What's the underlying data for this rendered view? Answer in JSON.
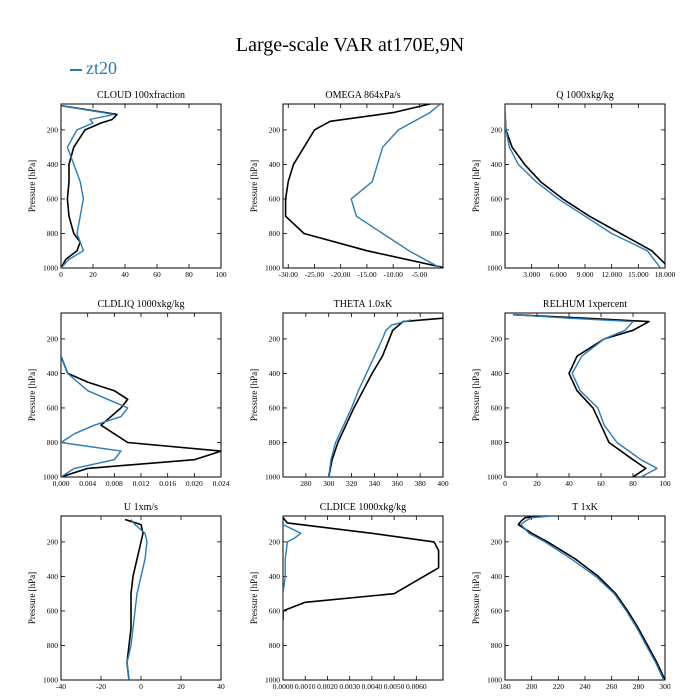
{
  "title": "Large-scale VAR at170E,9N",
  "legend": {
    "label": "zt20",
    "color": "#2b7bb9"
  },
  "colors": {
    "line_reference": "#000000",
    "line_zt20": "#2b7bb9"
  },
  "chart_data": [
    {
      "type": "line",
      "title": "CLOUD  100xfraction",
      "ylabel": "Pressure [hPa]",
      "xlim": [
        0,
        100
      ],
      "ylim": [
        1000,
        50
      ],
      "xticks": [
        0,
        20,
        40,
        60,
        80,
        100
      ],
      "xtick_labels": [
        "0",
        "20",
        "40",
        "60",
        "80",
        "100"
      ],
      "yticks": [
        200,
        400,
        600,
        800,
        1000
      ],
      "ytick_labels": [
        "200",
        "400",
        "600",
        "800",
        "1000"
      ],
      "series": [
        {
          "y": [
            60,
            110,
            140,
            160,
            200,
            300,
            400,
            500,
            600,
            700,
            800,
            850,
            900,
            950,
            1000
          ],
          "x": [
            0,
            35,
            32,
            25,
            15,
            8,
            5,
            5,
            4,
            5,
            8,
            12,
            10,
            3,
            0
          ]
        },
        {
          "name": "zt20",
          "y": [
            60,
            110,
            140,
            160,
            200,
            300,
            400,
            500,
            600,
            700,
            800,
            850,
            900,
            950,
            1000
          ],
          "x": [
            0,
            33,
            18,
            20,
            10,
            4,
            8,
            12,
            14,
            12,
            10,
            12,
            14,
            5,
            0
          ]
        }
      ]
    },
    {
      "type": "line",
      "title": "OMEGA  864xPa/s",
      "ylabel": "Pressure [hPa]",
      "xlim": [
        -31,
        -0.5
      ],
      "ylim": [
        1000,
        50
      ],
      "xticks": [
        -30,
        -25,
        -20,
        -15,
        -10,
        -5
      ],
      "xtick_labels": [
        "-30.00",
        "-25.00",
        "-20.00",
        "-15.00",
        "-10.00",
        "-5.00"
      ],
      "yticks": [
        200,
        400,
        600,
        800,
        1000
      ],
      "ytick_labels": [
        "200",
        "400",
        "600",
        "800",
        "1000"
      ],
      "series": [
        {
          "y": [
            50,
            100,
            150,
            200,
            300,
            400,
            500,
            600,
            700,
            800,
            900,
            1000
          ],
          "x": [
            -3,
            -10,
            -22,
            -25,
            -27,
            -29,
            -30,
            -30.5,
            -30.5,
            -27,
            -15,
            0
          ]
        },
        {
          "y": [
            50,
            100,
            200,
            300,
            400,
            500,
            600,
            700,
            800,
            900,
            1000
          ],
          "x": [
            -1,
            -3,
            -9,
            -12,
            -13,
            -14,
            -18,
            -17,
            -12,
            -7,
            -1
          ]
        }
      ]
    },
    {
      "type": "line",
      "title": "Q  1000xkg/kg",
      "ylabel": "Pressure [hPa]",
      "xlim": [
        0,
        18
      ],
      "ylim": [
        1000,
        50
      ],
      "xticks": [
        3,
        6,
        9,
        12,
        15,
        18
      ],
      "xtick_labels": [
        "3.000",
        "6.000",
        "9.000",
        "12.000",
        "15.000",
        "18.000"
      ],
      "yticks": [
        200,
        400,
        600,
        800,
        1000
      ],
      "ytick_labels": [
        "200",
        "400",
        "600",
        "800",
        "1000"
      ],
      "series": [
        {
          "y": [
            100,
            200,
            300,
            400,
            500,
            600,
            700,
            800,
            900,
            1000
          ],
          "x": [
            0,
            0.1,
            0.8,
            2.2,
            4,
            6.5,
            9.5,
            13,
            16.5,
            18.5
          ]
        },
        {
          "y": [
            100,
            200,
            300,
            400,
            500,
            600,
            700,
            800,
            900,
            1000
          ],
          "x": [
            0,
            0.1,
            0.5,
            1.5,
            3.5,
            6,
            9,
            12,
            16,
            17.5
          ]
        }
      ]
    },
    {
      "type": "line",
      "title": "CLDLIQ  1000xkg/kg",
      "ylabel": "Pressure [hPa]",
      "xlim": [
        0,
        0.024
      ],
      "ylim": [
        1000,
        50
      ],
      "xticks": [
        0,
        0.004,
        0.008,
        0.012,
        0.016,
        0.02,
        0.024
      ],
      "xtick_labels": [
        "0.000",
        "0.004",
        "0.008",
        "0.012",
        "0.016",
        "0.020",
        "0.024"
      ],
      "yticks": [
        200,
        400,
        600,
        800,
        1000
      ],
      "ytick_labels": [
        "200",
        "400",
        "600",
        "800",
        "1000"
      ],
      "series": [
        {
          "y": [
            300,
            400,
            450,
            500,
            550,
            600,
            700,
            800,
            850,
            900,
            950,
            1000
          ],
          "x": [
            0,
            0.001,
            0.004,
            0.008,
            0.01,
            0.009,
            0.006,
            0.01,
            0.024,
            0.02,
            0.004,
            0
          ]
        },
        {
          "y": [
            300,
            400,
            500,
            550,
            600,
            650,
            700,
            750,
            800,
            850,
            900,
            950,
            1000
          ],
          "x": [
            0,
            0.001,
            0.004,
            0.007,
            0.01,
            0.009,
            0.005,
            0.002,
            0,
            0.009,
            0.008,
            0.002,
            0
          ]
        }
      ]
    },
    {
      "type": "line",
      "title": "THETA  1.0xK",
      "ylabel": "Pressure [hPa]",
      "xlim": [
        260,
        400
      ],
      "ylim": [
        1000,
        50
      ],
      "xticks": [
        280,
        300,
        320,
        340,
        360,
        380,
        400
      ],
      "xtick_labels": [
        "280",
        "300",
        "320",
        "340",
        "360",
        "380",
        "400"
      ],
      "yticks": [
        200,
        400,
        600,
        800,
        1000
      ],
      "ytick_labels": [
        "200",
        "400",
        "600",
        "800",
        "1000"
      ],
      "series": [
        {
          "y": [
            80,
            100,
            150,
            200,
            300,
            400,
            500,
            600,
            700,
            800,
            900,
            1000
          ],
          "x": [
            400,
            365,
            356,
            353,
            347,
            338,
            330,
            322,
            315,
            308,
            303,
            300
          ]
        },
        {
          "y": [
            90,
            120,
            150,
            200,
            300,
            400,
            500,
            600,
            700,
            800,
            900,
            1000
          ],
          "x": [
            372,
            355,
            350,
            347,
            340,
            333,
            326,
            320,
            313,
            306,
            302,
            300
          ]
        }
      ]
    },
    {
      "type": "line",
      "title": "RELHUM  1xpercent",
      "ylabel": "Pressure [hPa]",
      "xlim": [
        0,
        100
      ],
      "ylim": [
        1000,
        50
      ],
      "xticks": [
        0,
        20,
        40,
        60,
        80,
        100
      ],
      "xtick_labels": [
        "0",
        "20",
        "40",
        "60",
        "80",
        "100"
      ],
      "yticks": [
        200,
        400,
        600,
        800,
        1000
      ],
      "ytick_labels": [
        "200",
        "400",
        "600",
        "800",
        "1000"
      ],
      "series": [
        {
          "y": [
            60,
            80,
            100,
            150,
            200,
            300,
            400,
            500,
            600,
            700,
            800,
            900,
            950,
            1000
          ],
          "x": [
            5,
            50,
            90,
            80,
            62,
            45,
            40,
            45,
            55,
            60,
            65,
            80,
            88,
            80
          ]
        },
        {
          "y": [
            60,
            80,
            100,
            150,
            200,
            300,
            400,
            500,
            600,
            700,
            800,
            900,
            950,
            1000
          ],
          "x": [
            5,
            40,
            80,
            75,
            62,
            48,
            42,
            47,
            58,
            62,
            70,
            85,
            95,
            85
          ]
        }
      ]
    },
    {
      "type": "line",
      "title": "U  1xm/s",
      "ylabel": "Pressure [hPa]",
      "xlim": [
        -40,
        40
      ],
      "ylim": [
        1000,
        50
      ],
      "xticks": [
        -40,
        -20,
        0,
        20,
        40
      ],
      "xtick_labels": [
        "-40",
        "-20",
        "0",
        "20",
        "40"
      ],
      "yticks": [
        200,
        400,
        600,
        800,
        1000
      ],
      "ytick_labels": [
        "200",
        "400",
        "600",
        "800",
        "1000"
      ],
      "series": [
        {
          "y": [
            70,
            100,
            150,
            200,
            300,
            400,
            500,
            600,
            700,
            800,
            900,
            1000
          ],
          "x": [
            -8,
            0,
            1,
            0,
            -2,
            -4,
            -5,
            -5,
            -5,
            -6,
            -7,
            -6
          ]
        },
        {
          "y": [
            70,
            100,
            150,
            200,
            300,
            400,
            500,
            600,
            700,
            800,
            900,
            1000
          ],
          "x": [
            -5,
            -3,
            2,
            3,
            2,
            0,
            -2,
            -3,
            -4,
            -5,
            -7,
            -6
          ]
        }
      ]
    },
    {
      "type": "line",
      "title": "CLDICE  1000xkg/kg",
      "ylabel": "Pressure [hPa]",
      "xlim": [
        0,
        0.0072
      ],
      "ylim": [
        1000,
        50
      ],
      "xticks": [
        0,
        0.001,
        0.002,
        0.003,
        0.004,
        0.005,
        0.006
      ],
      "xtick_labels": [
        "0.0000",
        "0.0010",
        "0.0020",
        "0.0030",
        "0.0040",
        "0.0050",
        "0.0060"
      ],
      "yticks": [
        200,
        400,
        600,
        800,
        1000
      ],
      "ytick_labels": [
        "200",
        "400",
        "600",
        "800",
        "1000"
      ],
      "series": [
        {
          "y": [
            60,
            90,
            150,
            200,
            250,
            350,
            500,
            550,
            600,
            650
          ],
          "x": [
            0,
            0.0002,
            0.004,
            0.0068,
            0.007,
            0.007,
            0.005,
            0.001,
            0,
            0
          ]
        },
        {
          "y": [
            100,
            150,
            180,
            200,
            300,
            400,
            500,
            600
          ],
          "x": [
            0,
            0.0008,
            0.0005,
            0.0002,
            0.0001,
            0.0001,
            0,
            0
          ]
        }
      ]
    },
    {
      "type": "line",
      "title": "T  1xK",
      "ylabel": "Pressure [hPa]",
      "xlim": [
        180,
        300
      ],
      "ylim": [
        1000,
        50
      ],
      "xticks": [
        180,
        200,
        220,
        240,
        260,
        280,
        300
      ],
      "xtick_labels": [
        "180",
        "200",
        "220",
        "240",
        "260",
        "280",
        "300"
      ],
      "yticks": [
        200,
        400,
        600,
        800,
        1000
      ],
      "ytick_labels": [
        "200",
        "400",
        "600",
        "800",
        "1000"
      ],
      "series": [
        {
          "y": [
            50,
            60,
            80,
            100,
            150,
            200,
            300,
            400,
            500,
            600,
            700,
            800,
            900,
            1000
          ],
          "x": [
            210,
            195,
            192,
            190,
            200,
            212,
            233,
            250,
            263,
            272,
            280,
            287,
            294,
            300
          ]
        },
        {
          "y": [
            50,
            60,
            80,
            100,
            150,
            200,
            300,
            400,
            500,
            600,
            700,
            800,
            900,
            1000
          ],
          "x": [
            215,
            200,
            195,
            192,
            198,
            210,
            230,
            248,
            262,
            271,
            279,
            286,
            293,
            299
          ]
        }
      ]
    }
  ]
}
